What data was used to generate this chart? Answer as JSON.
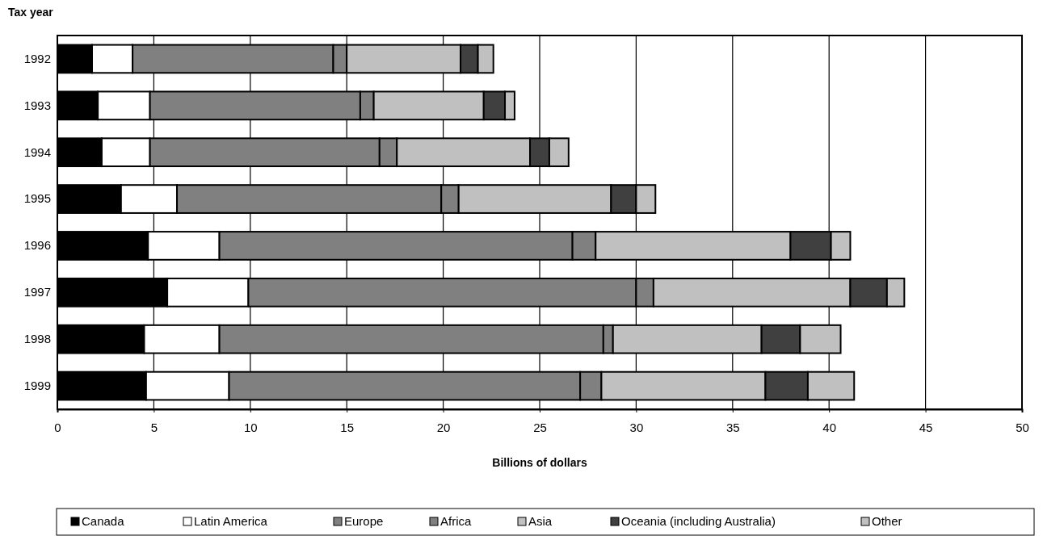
{
  "chart_data": {
    "type": "bar",
    "orientation": "horizontal",
    "stacked": true,
    "ylabel": "Tax year",
    "xlabel": "Billions of dollars",
    "categories": [
      "1992",
      "1993",
      "1994",
      "1995",
      "1996",
      "1997",
      "1998",
      "1999"
    ],
    "series": [
      {
        "name": "Canada",
        "color": "#000000",
        "values": [
          1.8,
          2.1,
          2.3,
          3.3,
          4.7,
          5.7,
          4.5,
          4.6
        ]
      },
      {
        "name": "Latin America",
        "color": "#ffffff",
        "values": [
          2.1,
          2.7,
          2.5,
          2.9,
          3.7,
          4.2,
          3.9,
          4.3
        ]
      },
      {
        "name": "Europe",
        "color": "#808080",
        "values": [
          10.4,
          10.9,
          11.9,
          13.7,
          18.3,
          20.1,
          19.9,
          18.2
        ]
      },
      {
        "name": "Africa",
        "color": "#808080",
        "values": [
          0.7,
          0.7,
          0.9,
          0.9,
          1.2,
          0.9,
          0.5,
          1.1
        ]
      },
      {
        "name": "Asia",
        "color": "#c0c0c0",
        "values": [
          5.9,
          5.7,
          6.9,
          7.9,
          10.1,
          10.2,
          7.7,
          8.5
        ]
      },
      {
        "name": "Oceania (including Australia)",
        "color": "#404040",
        "values": [
          0.9,
          1.1,
          1.0,
          1.3,
          2.1,
          1.9,
          2.0,
          2.2
        ]
      },
      {
        "name": "Other",
        "color": "#c0c0c0",
        "values": [
          0.8,
          0.5,
          1.0,
          1.0,
          1.0,
          0.9,
          2.1,
          2.4
        ]
      }
    ],
    "xlim": [
      0,
      50
    ],
    "xticks": [
      0,
      5,
      10,
      15,
      20,
      25,
      30,
      35,
      40,
      45,
      50
    ],
    "grid": "x",
    "legend": "bottom"
  }
}
